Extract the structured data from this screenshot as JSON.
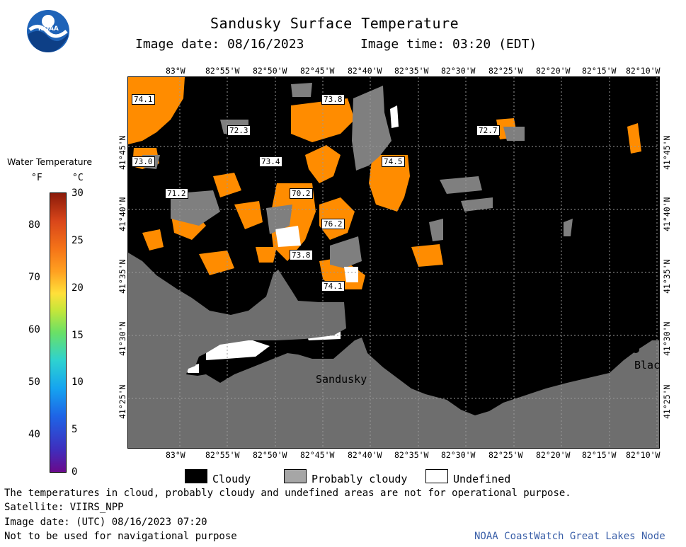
{
  "header": {
    "logo_text": "NOAA",
    "title": "Sandusky Surface Temperature",
    "image_date": "Image date: 08/16/2023",
    "image_time": "Image time: 03:20 (EDT)"
  },
  "map": {
    "lon_ticks": [
      "83°W",
      "82°55'W",
      "82°50'W",
      "82°45'W",
      "82°40'W",
      "82°35'W",
      "82°30'W",
      "82°25'W",
      "82°20'W",
      "82°15'W",
      "82°10'W"
    ],
    "lat_ticks": [
      "41°45'N",
      "41°40'N",
      "41°35'N",
      "41°30'N",
      "41°25'N"
    ],
    "place_sandusky": "Sandusky",
    "place_blac": "Blac",
    "temp_labels": [
      "74.1",
      "73.8",
      "72.3",
      "72.7",
      "73.0",
      "73.4",
      "74.5",
      "71.2",
      "70.2",
      "76.2",
      "73.8",
      "74.1"
    ],
    "colors": {
      "cloud": "#000000",
      "prob_cloud": "#7f7f7f",
      "land": "#6e6e6e",
      "water_warm": "#ff8c00",
      "undefined": "#ffffff"
    }
  },
  "colorbar": {
    "title": "Water Temperature",
    "unit_f": "°F",
    "unit_c": "°C",
    "f_ticks": [
      "80",
      "70",
      "60",
      "50",
      "40"
    ],
    "c_ticks": [
      "30",
      "25",
      "20",
      "15",
      "10",
      "5",
      "0"
    ]
  },
  "legend": {
    "cloudy": "Cloudy",
    "probably_cloudy": "Probably cloudy",
    "undefined": "Undefined"
  },
  "footer": {
    "line1": "The temperatures in cloud, probably cloudy and undefined areas are not for operational purpose.",
    "line2": "Satellite: VIIRS_NPP",
    "line3": "Image date: (UTC) 08/16/2023  07:20",
    "line4": "Not to be used for navigational purpose",
    "credit": "NOAA CoastWatch Great Lakes Node"
  }
}
